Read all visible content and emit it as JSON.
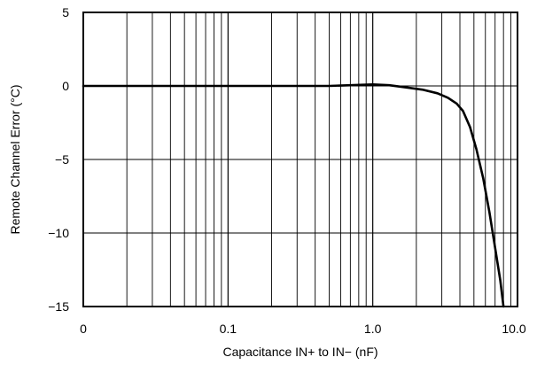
{
  "chart_data": {
    "type": "line",
    "title": "",
    "xlabel": "Capacitance IN+ to IN− (nF)",
    "ylabel": "Remote Channel Error (°C)",
    "x_scale": "log",
    "xlim": [
      0.01,
      10.0
    ],
    "ylim": [
      -15,
      5
    ],
    "grid": true,
    "legend": "none",
    "x_tick_labels": [
      {
        "value": 0.01,
        "label": "0"
      },
      {
        "value": 0.1,
        "label": "0.1"
      },
      {
        "value": 1.0,
        "label": "1.0"
      },
      {
        "value": 10.0,
        "label": "10.0"
      }
    ],
    "y_ticks": [
      5,
      0,
      -5,
      -10,
      -15
    ],
    "y_tick_labels": [
      "5",
      "0",
      "−5",
      "−10",
      "−15"
    ],
    "series": [
      {
        "color": "#000000",
        "points": [
          {
            "x": 0.01,
            "y": 0.0
          },
          {
            "x": 0.1,
            "y": 0.0
          },
          {
            "x": 0.5,
            "y": 0.0
          },
          {
            "x": 0.7,
            "y": 0.05
          },
          {
            "x": 1.0,
            "y": 0.1
          },
          {
            "x": 1.3,
            "y": 0.05
          },
          {
            "x": 1.7,
            "y": -0.1
          },
          {
            "x": 2.2,
            "y": -0.25
          },
          {
            "x": 2.8,
            "y": -0.5
          },
          {
            "x": 3.3,
            "y": -0.8
          },
          {
            "x": 3.8,
            "y": -1.2
          },
          {
            "x": 4.2,
            "y": -1.7
          },
          {
            "x": 4.7,
            "y": -2.8
          },
          {
            "x": 5.2,
            "y": -4.3
          },
          {
            "x": 5.8,
            "y": -6.3
          },
          {
            "x": 6.4,
            "y": -8.6
          },
          {
            "x": 7.0,
            "y": -11.0
          },
          {
            "x": 7.6,
            "y": -13.2
          },
          {
            "x": 8.0,
            "y": -15.0
          }
        ]
      }
    ]
  }
}
